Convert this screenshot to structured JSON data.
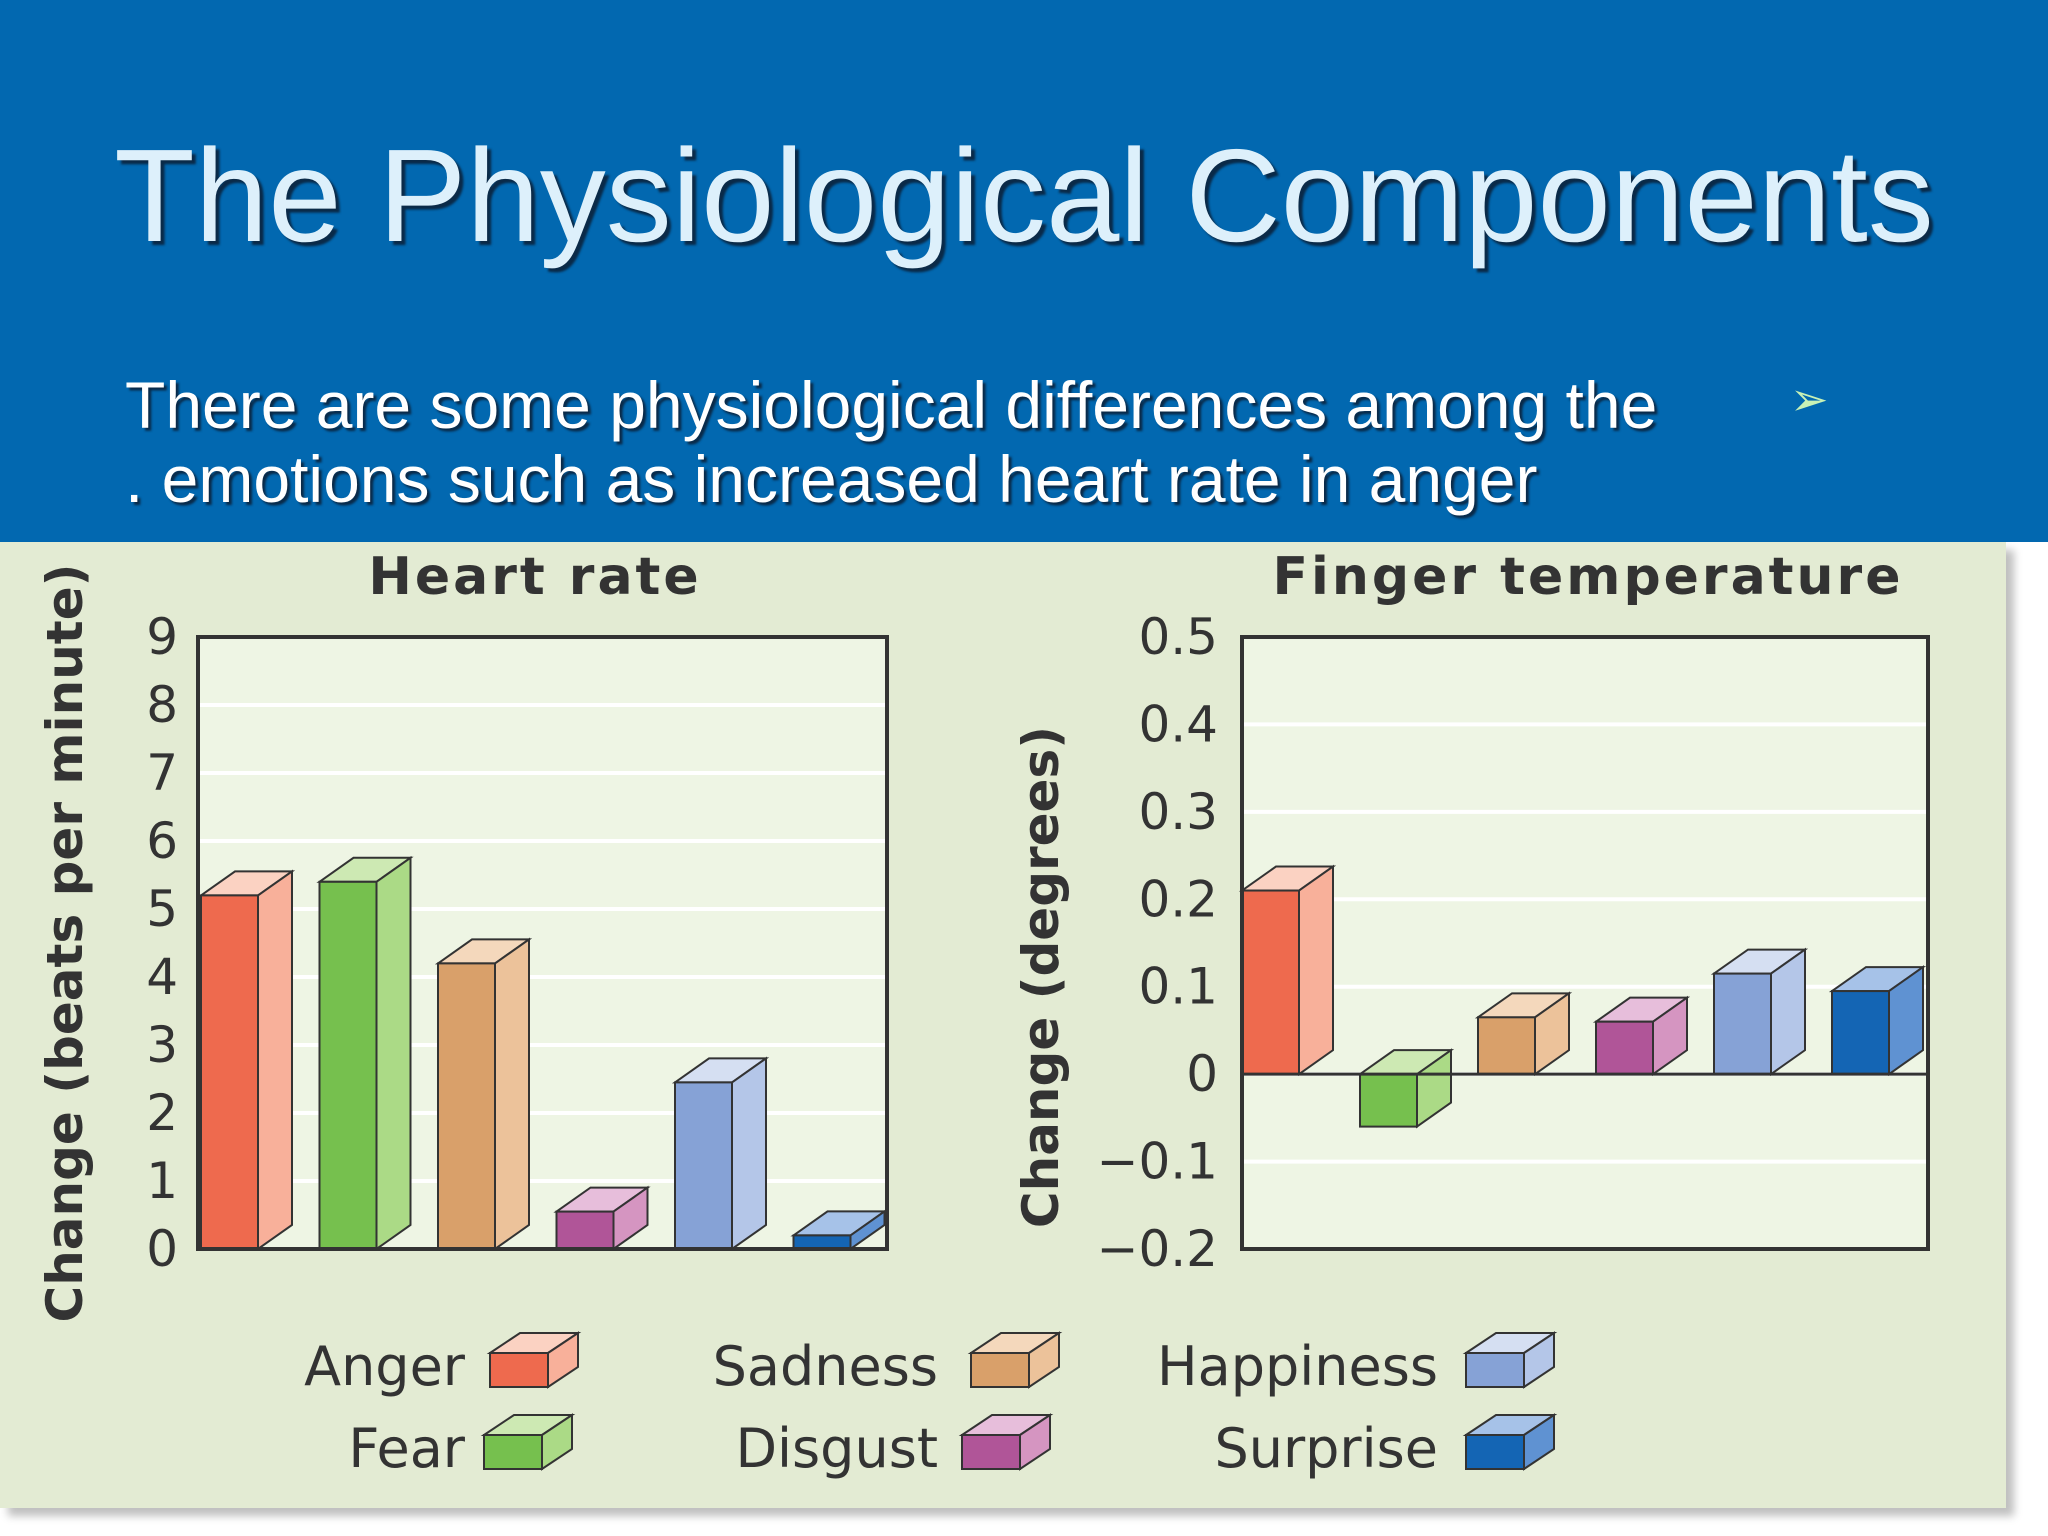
{
  "slide": {
    "title": "The Physiological Components",
    "subtitle_lines": [
      "There are some physiological differences among the",
      ". emotions such as increased heart rate in anger"
    ],
    "bullet_icon": "arrow-bullet-icon",
    "colors": {
      "header": "#0268b0",
      "title_text": "#ddf0fb",
      "panel": "#e3ebd3",
      "plot_bg": "#eef5e4"
    }
  },
  "chart_data": [
    {
      "type": "bar",
      "title": "Heart rate",
      "ylabel": "Change (beats per minute)",
      "xlabel": "",
      "categories": [
        "Anger",
        "Fear",
        "Sadness",
        "Disgust",
        "Happiness",
        "Surprise"
      ],
      "values": [
        5.2,
        5.4,
        4.2,
        0.55,
        2.45,
        0.2
      ],
      "ylim": [
        0,
        9
      ],
      "yticks": [
        "0",
        "1",
        "2",
        "3",
        "4",
        "5",
        "6",
        "7",
        "8",
        "9"
      ],
      "grid": true
    },
    {
      "type": "bar",
      "title": "Finger temperature",
      "ylabel": "Change (degrees)",
      "xlabel": "",
      "categories": [
        "Anger",
        "Fear",
        "Sadness",
        "Disgust",
        "Happiness",
        "Surprise"
      ],
      "values": [
        0.21,
        -0.06,
        0.065,
        0.06,
        0.115,
        0.095
      ],
      "ylim": [
        -0.2,
        0.5
      ],
      "yticks": [
        "−0.2",
        "−0.1",
        "0",
        "0.1",
        "0.2",
        "0.3",
        "0.4",
        "0.5"
      ],
      "grid": true
    }
  ],
  "legend": {
    "placement": "bottom",
    "items": [
      {
        "label": "Anger",
        "color": "#ee6a4e",
        "side": "#f8b09a",
        "top": "#fbd2c2"
      },
      {
        "label": "Fear",
        "color": "#76c04e",
        "side": "#abda86",
        "top": "#cde9b3"
      },
      {
        "label": "Sadness",
        "color": "#d9a06a",
        "side": "#ecc29a",
        "top": "#f4d8bc"
      },
      {
        "label": "Disgust",
        "color": "#b05598",
        "side": "#d595c1",
        "top": "#e7bedb"
      },
      {
        "label": "Happiness",
        "color": "#86a2d6",
        "side": "#b4c6e8",
        "top": "#d5dff2"
      },
      {
        "label": "Surprise",
        "color": "#1465b4",
        "side": "#5f92d2",
        "top": "#a6c2e8"
      }
    ]
  }
}
